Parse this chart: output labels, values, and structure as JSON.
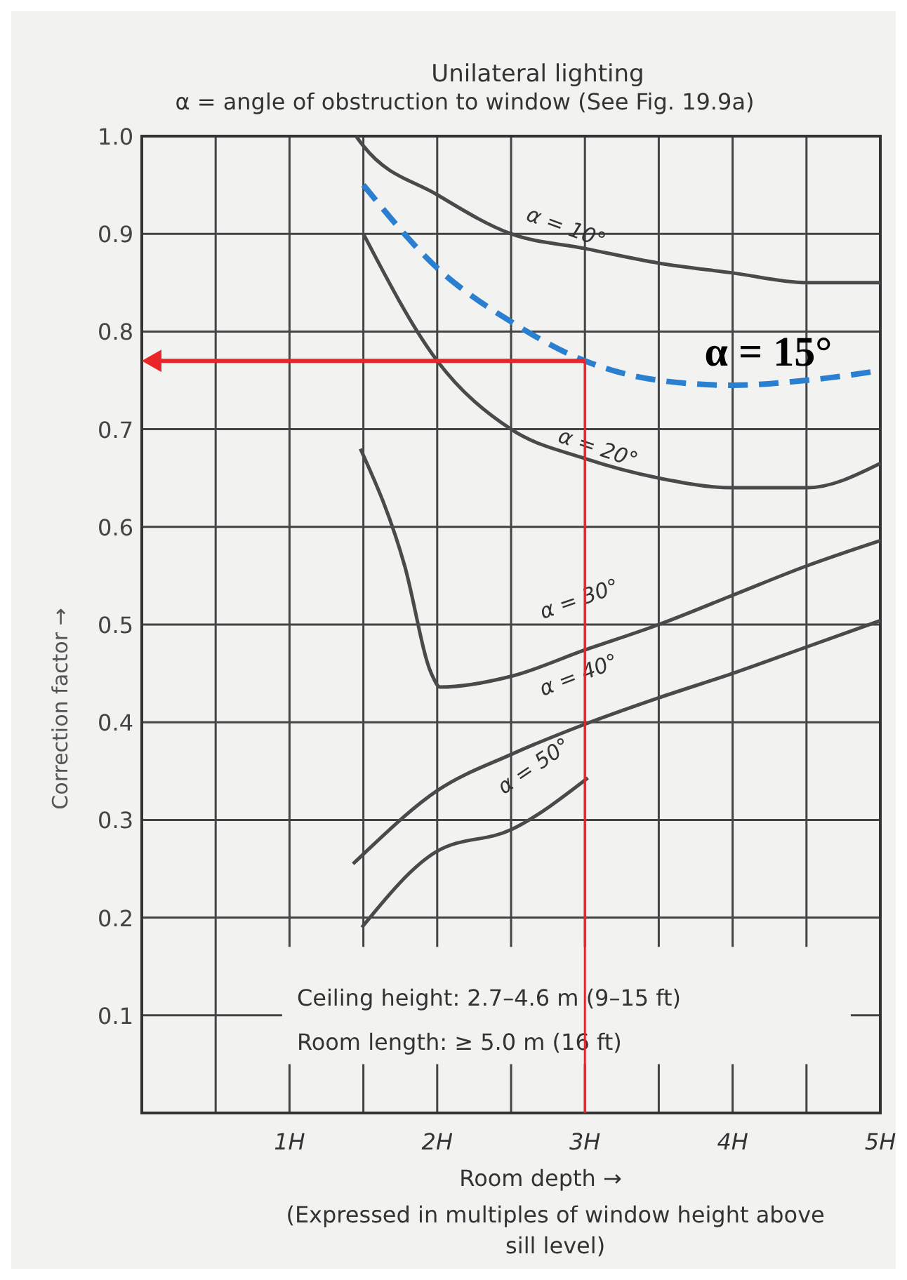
{
  "chart_data": {
    "type": "line",
    "title": "Unilateral lighting",
    "subtitle": "α = angle of obstruction to window (See Fig. 19.9a)",
    "xlabel": "Room depth →",
    "ylabel": "Correction factor →",
    "annotations": [
      "Ceiling height: 2.7–4.6 m (9–15 ft)",
      "Room length: ≥ 5.0 m (16 ft)",
      "(Expressed in multiples of window height above sill level)"
    ],
    "xlim": [
      0,
      5
    ],
    "ylim": [
      0,
      1
    ],
    "xticks": [
      {
        "value": 0,
        "label": null
      },
      {
        "value": 0.5,
        "label": null
      },
      {
        "value": 1,
        "label": "1H"
      },
      {
        "value": 1.5,
        "label": null
      },
      {
        "value": 2,
        "label": "2H"
      },
      {
        "value": 2.5,
        "label": null
      },
      {
        "value": 3,
        "label": "3H"
      },
      {
        "value": 3.5,
        "label": null
      },
      {
        "value": 4,
        "label": "4H"
      },
      {
        "value": 4.5,
        "label": null
      },
      {
        "value": 5,
        "label": "5H"
      }
    ],
    "yticks": [
      {
        "value": 0,
        "label": null
      },
      0.1,
      0.2,
      0.3,
      0.4,
      0.5,
      0.6,
      0.7,
      0.8,
      0.9,
      {
        "value": 1,
        "label": "1.0"
      }
    ],
    "grid": true,
    "marker": "none",
    "series": [
      {
        "name": "α = 10°",
        "color": "#4a4a4a",
        "line_style": "solid",
        "x": [
          1.45,
          1.5,
          2,
          2.5,
          3,
          3.5,
          4,
          4.5,
          5
        ],
        "values": [
          1.0,
          0.99,
          0.94,
          0.9,
          0.885,
          0.87,
          0.86,
          0.85,
          0.85
        ]
      },
      {
        "name": "α = 15°",
        "color": "#2a7fd0",
        "line_style": "dashed",
        "x": [
          1.5,
          2,
          2.5,
          3,
          3.5,
          4,
          4.5,
          5
        ],
        "values": [
          0.95,
          0.865,
          0.81,
          0.77,
          0.75,
          0.745,
          0.75,
          0.76
        ]
      },
      {
        "name": "α = 20°",
        "color": "#4a4a4a",
        "line_style": "solid",
        "x": [
          1.5,
          2,
          2.5,
          3,
          3.5,
          4,
          4.5,
          5
        ],
        "values": [
          0.9,
          0.77,
          0.7,
          0.67,
          0.65,
          0.64,
          0.64,
          0.665
        ]
      },
      {
        "name": "α = 30°",
        "color": "#4a4a4a",
        "line_style": "solid",
        "x": [
          1.48,
          1.78,
          1.96,
          2.02,
          2.5,
          3,
          3.5,
          4,
          4.5,
          5
        ],
        "values": [
          0.68,
          0.56,
          0.45,
          0.436,
          0.447,
          0.474,
          0.5,
          0.53,
          0.56,
          0.586
        ]
      },
      {
        "name": "α = 40°",
        "color": "#4a4a4a",
        "line_style": "solid",
        "x": [
          1.43,
          1.5,
          2,
          2.5,
          3,
          3.5,
          4,
          4.5,
          5
        ],
        "values": [
          0.255,
          0.265,
          0.33,
          0.367,
          0.398,
          0.425,
          0.45,
          0.477,
          0.504
        ]
      },
      {
        "name": "α = 50°",
        "color": "#4a4a4a",
        "line_style": "solid",
        "x": [
          1.49,
          2,
          2.5,
          3.02
        ],
        "values": [
          0.19,
          0.268,
          0.29,
          0.343
        ]
      }
    ],
    "ref_lines": [
      {
        "axis": "x",
        "value": 3,
        "color": "#e8262a"
      },
      {
        "axis": "y",
        "value": 0.77,
        "color": "#e8262a"
      }
    ]
  }
}
